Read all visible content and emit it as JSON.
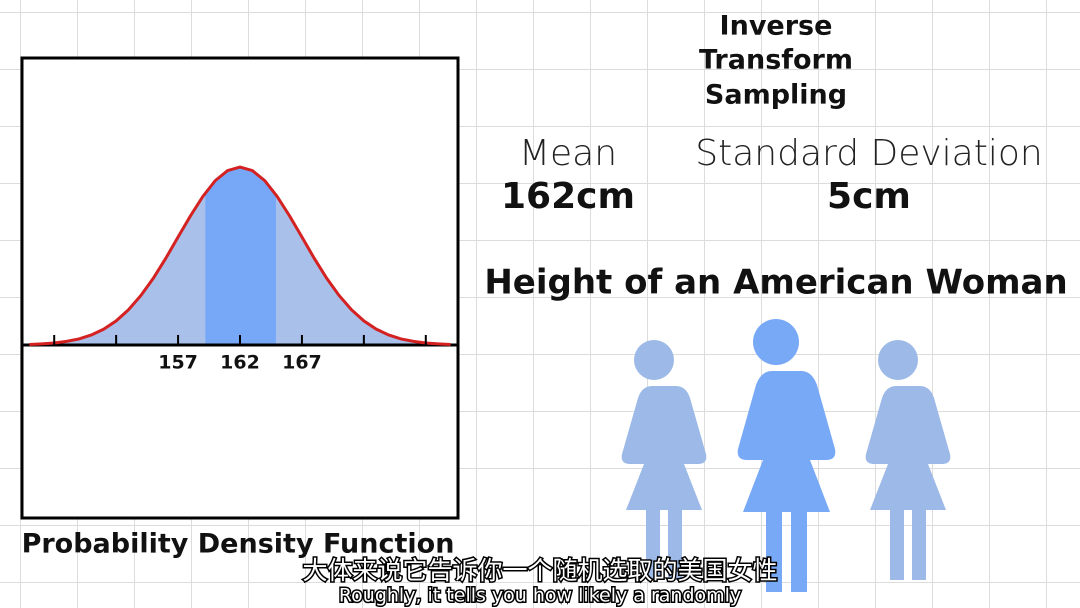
{
  "header": {
    "title_lines": [
      "Inverse",
      "Transform",
      "Sampling"
    ]
  },
  "stats": {
    "mean_label": "Mean",
    "mean_value": "162cm",
    "sd_label": "Standard Deviation",
    "sd_value": "5cm"
  },
  "subject": "Height of an American Woman",
  "subtitles": {
    "chinese": "大体来说它告诉你一个随机选取的美国女性",
    "english": "Roughly, it tells you how likely a randomly"
  },
  "chart_data": {
    "type": "area",
    "xlabel": "Probability Density Function",
    "x": [
      145,
      146,
      147,
      148,
      149,
      150,
      151,
      152,
      153,
      154,
      155,
      156,
      157,
      158,
      159,
      160,
      161,
      162,
      163,
      164,
      165,
      166,
      167,
      168,
      169,
      170,
      171,
      172,
      173,
      174,
      175,
      176,
      177,
      178,
      179
    ],
    "values": [
      0.0002,
      0.0005,
      0.0009,
      0.0016,
      0.0027,
      0.0045,
      0.0071,
      0.0108,
      0.0158,
      0.0222,
      0.0299,
      0.0388,
      0.0484,
      0.0579,
      0.0666,
      0.0737,
      0.0782,
      0.0798,
      0.0782,
      0.0737,
      0.0666,
      0.0579,
      0.0484,
      0.0388,
      0.0299,
      0.0222,
      0.0158,
      0.0108,
      0.0071,
      0.0045,
      0.0027,
      0.0016,
      0.0009,
      0.0005,
      0.0002
    ],
    "xlim": [
      144.4,
      179.6
    ],
    "ylim": [
      -0.0776,
      0.1287
    ],
    "xticks": [
      157,
      162,
      167
    ],
    "highlight_range": [
      159.2,
      164.9
    ],
    "line_color": "#d42121",
    "fill_color": "#a9c0ea",
    "highlight_color": "#77a8f8"
  }
}
